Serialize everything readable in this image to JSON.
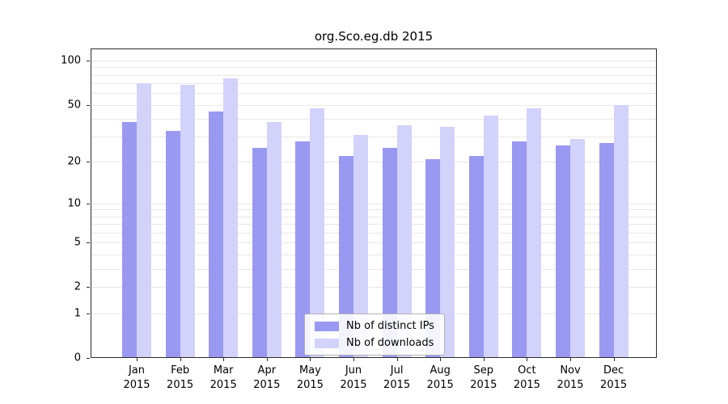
{
  "chart_data": {
    "type": "bar",
    "title": "org.Sco.eg.db 2015",
    "xlabel": "",
    "ylabel": "",
    "scale": "log1p",
    "ylim": [
      0,
      121
    ],
    "y_ticks": [
      100,
      50,
      20,
      10,
      5,
      2,
      1,
      0
    ],
    "gridlines": [
      1,
      2,
      3,
      4,
      5,
      6,
      7,
      8,
      9,
      10,
      20,
      30,
      40,
      50,
      60,
      70,
      80,
      90,
      100
    ],
    "categories": [
      "Jan",
      "Feb",
      "Mar",
      "Apr",
      "May",
      "Jun",
      "Jul",
      "Aug",
      "Sep",
      "Oct",
      "Nov",
      "Dec"
    ],
    "year_label": "2015",
    "legend_position": "bottom-center-inside",
    "series": [
      {
        "name": "Nb of distinct IPs",
        "color": "#9999f2",
        "values": [
          38,
          33,
          45,
          25,
          28,
          22,
          25,
          21,
          22,
          28,
          26,
          27
        ]
      },
      {
        "name": "Nb of downloads",
        "color": "#d2d2fa",
        "values": [
          70,
          68,
          76,
          38,
          47,
          31,
          36,
          35,
          42,
          47,
          29,
          50
        ]
      }
    ]
  }
}
